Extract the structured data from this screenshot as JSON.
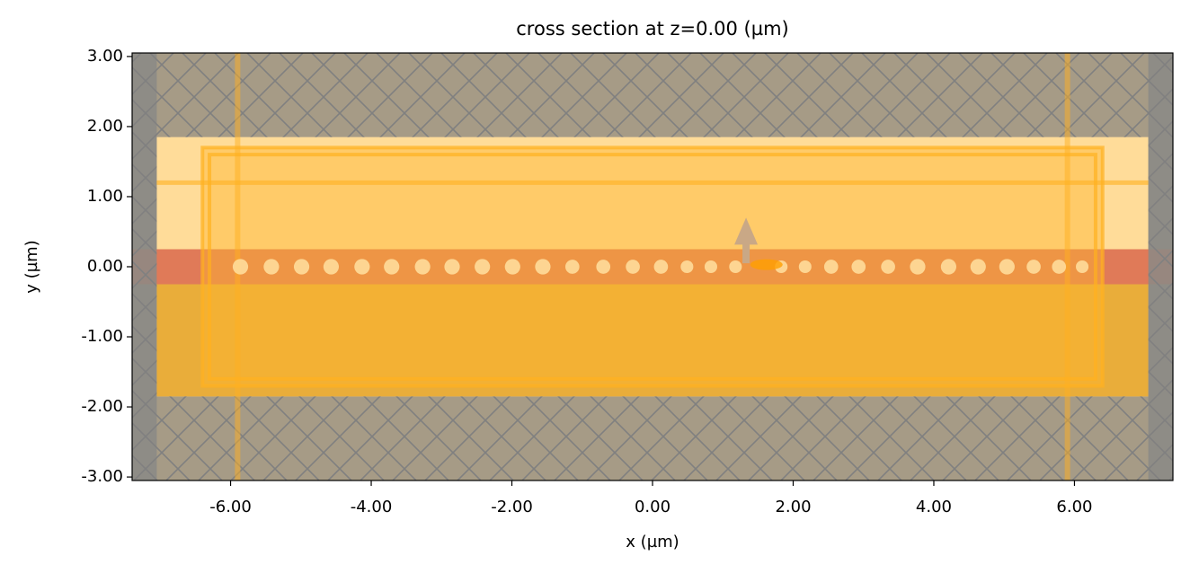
{
  "chart_data": {
    "type": "cross-section",
    "title": "cross section at z=0.00 (µm)",
    "xlabel": "x (µm)",
    "ylabel": "y (µm)",
    "xlim": [
      -7.4,
      7.4
    ],
    "ylim": [
      -3.05,
      3.05
    ],
    "xticks": [
      {
        "value": -6,
        "label": "-6.00"
      },
      {
        "value": -4,
        "label": "-4.00"
      },
      {
        "value": -2,
        "label": "-2.00"
      },
      {
        "value": 0,
        "label": "0.00"
      },
      {
        "value": 2,
        "label": "2.00"
      },
      {
        "value": 4,
        "label": "4.00"
      },
      {
        "value": 6,
        "label": "6.00"
      }
    ],
    "yticks": [
      {
        "value": -3,
        "label": "-3.00"
      },
      {
        "value": -2,
        "label": "-2.00"
      },
      {
        "value": -1,
        "label": "-1.00"
      },
      {
        "value": 0,
        "label": "0.00"
      },
      {
        "value": 1,
        "label": "1.00"
      },
      {
        "value": 2,
        "label": "2.00"
      },
      {
        "value": 3,
        "label": "3.00"
      }
    ],
    "rects": [
      {
        "x0": -7.4,
        "x1": 7.4,
        "y0": -3.05,
        "y1": 3.05,
        "fill": "#a69b86",
        "opacity": 1
      },
      {
        "x0": -7.05,
        "x1": 7.05,
        "y0": -1.85,
        "y1": 1.85,
        "fill": "#ffdc99",
        "opacity": 1
      },
      {
        "x0": -7.05,
        "x1": 7.05,
        "y0": -1.85,
        "y1": -0.25,
        "fill": "#e9ad3a",
        "opacity": 1
      },
      {
        "x0": -7.4,
        "x1": 7.4,
        "y0": -0.25,
        "y1": 0.25,
        "fill": "#e07a58",
        "opacity": 1
      },
      {
        "x0": -6.4,
        "x1": 6.4,
        "y0": -1.7,
        "y1": 1.7,
        "fill": "#ffb52e",
        "opacity": 0.45
      },
      {
        "x0": -7.4,
        "x1": -7.05,
        "y0": -3.05,
        "y1": 3.05,
        "fill": "#8a8986",
        "opacity": 0.85
      },
      {
        "x0": 7.05,
        "x1": 7.4,
        "y0": -3.05,
        "y1": 3.05,
        "fill": "#8a8986",
        "opacity": 0.85
      }
    ],
    "hatch": [
      {
        "x0": -7.4,
        "x1": 7.4,
        "y0": 1.85,
        "y1": 3.05
      },
      {
        "x0": -7.4,
        "x1": 7.4,
        "y0": -3.05,
        "y1": -1.85
      },
      {
        "x0": -7.4,
        "x1": -7.05,
        "y0": -1.85,
        "y1": 1.85
      },
      {
        "x0": 7.05,
        "x1": 7.4,
        "y0": -1.85,
        "y1": 1.85
      }
    ],
    "outlines": [
      {
        "x0": -6.4,
        "x1": 6.4,
        "y0": -1.7,
        "y1": 1.7,
        "color": "#ffb020"
      },
      {
        "x0": -6.3,
        "x1": 6.3,
        "y0": -1.6,
        "y1": 1.6,
        "color": "#ffb020"
      }
    ],
    "vlines": {
      "x": [
        -5.9,
        5.9
      ],
      "color": "#ffb020"
    },
    "hlines": {
      "y": [
        1.2
      ],
      "x0": -7.05,
      "x1": 7.05,
      "color": "#ffb020"
    },
    "holes": {
      "y": 0,
      "color": "#ffe0a0",
      "x": [
        -5.86,
        -5.42,
        -4.99,
        -4.57,
        -4.13,
        -3.71,
        -3.27,
        -2.85,
        -2.42,
        -1.99,
        -1.56,
        -1.14,
        -0.7,
        -0.28,
        0.12,
        0.49,
        0.83,
        1.18,
        1.83,
        2.17,
        2.54,
        2.93,
        3.35,
        3.77,
        4.21,
        4.63,
        5.04,
        5.42,
        5.78,
        6.11
      ],
      "r": [
        0.11,
        0.11,
        0.11,
        0.11,
        0.11,
        0.11,
        0.11,
        0.11,
        0.11,
        0.11,
        0.11,
        0.1,
        0.1,
        0.1,
        0.1,
        0.09,
        0.09,
        0.09,
        0.09,
        0.09,
        0.1,
        0.1,
        0.1,
        0.11,
        0.11,
        0.11,
        0.11,
        0.1,
        0.1,
        0.09
      ]
    },
    "source": {
      "x": 1.33,
      "y0": 0.05,
      "y1": 0.7,
      "color": "#c9a886",
      "point_x": 1.62,
      "point_y": 0.03,
      "point_color": "#ff9f00"
    }
  }
}
